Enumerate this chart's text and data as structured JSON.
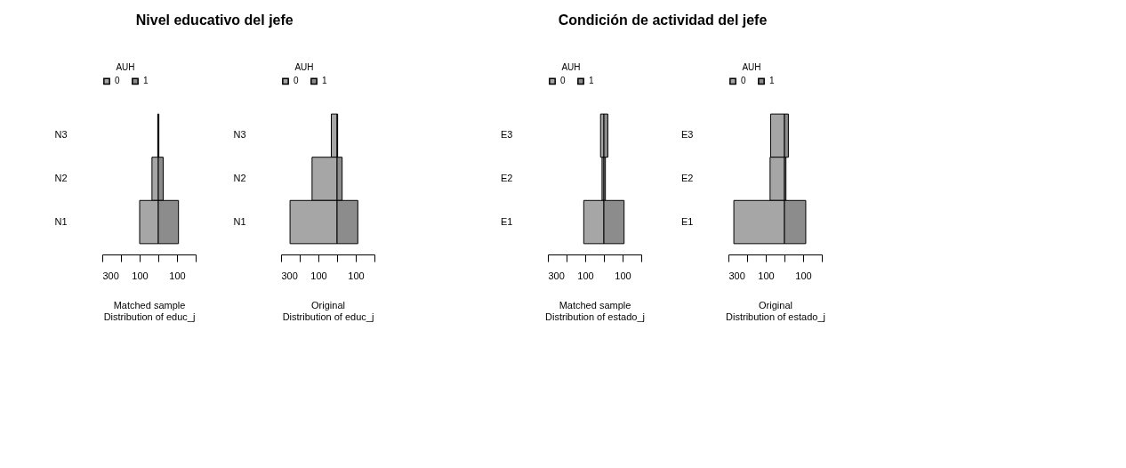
{
  "chart_data": [
    {
      "type": "bar",
      "orientation": "horizontal",
      "stacked": true,
      "title": "Nivel educativo del jefe",
      "xlabel": "Matched  sample\nDistribution of educ_j",
      "legend_title": "AUH",
      "legend": "top",
      "grid": false,
      "categories": [
        "N3",
        "N2",
        "N1"
      ],
      "series": [
        {
          "name": "0",
          "color": "#a6a6a6",
          "values": [
            -3,
            -34,
            -100
          ]
        },
        {
          "name": "1",
          "color": "#8c8c8c",
          "values": [
            3,
            26,
            108
          ]
        }
      ],
      "xlim": [
        -300,
        200
      ],
      "xticks": [
        {
          "value": -300,
          "label": "300"
        },
        {
          "value": -200,
          "label": null
        },
        {
          "value": -100,
          "label": "100"
        },
        {
          "value": 0,
          "label": null
        },
        100,
        {
          "value": 200,
          "label": null
        }
      ]
    },
    {
      "type": "bar",
      "orientation": "horizontal",
      "stacked": true,
      "xlabel": "Original\nDistribution of educ_j",
      "legend_title": "AUH",
      "legend": "top",
      "grid": false,
      "categories": [
        "N3",
        "N2",
        "N1"
      ],
      "series": [
        {
          "name": "0",
          "color": "#a6a6a6",
          "values": [
            -31,
            -134,
            -252
          ]
        },
        {
          "name": "1",
          "color": "#8c8c8c",
          "values": [
            3,
            27,
            111
          ]
        }
      ],
      "xlim": [
        -300,
        200
      ],
      "xticks": [
        {
          "value": -300,
          "label": "300"
        },
        {
          "value": -200,
          "label": null
        },
        {
          "value": -100,
          "label": "100"
        },
        {
          "value": 0,
          "label": null
        },
        100,
        {
          "value": 200,
          "label": null
        }
      ]
    },
    {
      "type": "bar",
      "orientation": "horizontal",
      "stacked": true,
      "title": "Condición de actividad del jefe",
      "xlabel": "Matched  sample\nDistribution of estado_j",
      "legend_title": "AUH",
      "legend": "top",
      "grid": false,
      "categories": [
        "E3",
        "E2",
        "E1"
      ],
      "series": [
        {
          "name": "0",
          "color": "#a6a6a6",
          "values": [
            -18,
            -10,
            -108
          ]
        },
        {
          "name": "1",
          "color": "#8c8c8c",
          "values": [
            21,
            8,
            108
          ]
        }
      ],
      "xlim": [
        -300,
        200
      ],
      "xticks": [
        {
          "value": -300,
          "label": "300"
        },
        {
          "value": -200,
          "label": null
        },
        {
          "value": -100,
          "label": "100"
        },
        {
          "value": 0,
          "label": null
        },
        100,
        {
          "value": 200,
          "label": null
        }
      ]
    },
    {
      "type": "bar",
      "orientation": "horizontal",
      "stacked": true,
      "xlabel": "Original\nDistribution of estado_j",
      "legend_title": "AUH",
      "legend": "top",
      "grid": false,
      "categories": [
        "E3",
        "E2",
        "E1"
      ],
      "series": [
        {
          "name": "0",
          "color": "#a6a6a6",
          "values": [
            -74,
            -77,
            -271
          ]
        },
        {
          "name": "1",
          "color": "#8c8c8c",
          "values": [
            21,
            8,
            114
          ]
        }
      ],
      "xlim": [
        -300,
        200
      ],
      "xticks": [
        {
          "value": -300,
          "label": "300"
        },
        {
          "value": -200,
          "label": null
        },
        {
          "value": -100,
          "label": "100"
        },
        {
          "value": 0,
          "label": null
        },
        100,
        {
          "value": 200,
          "label": null
        }
      ]
    }
  ]
}
